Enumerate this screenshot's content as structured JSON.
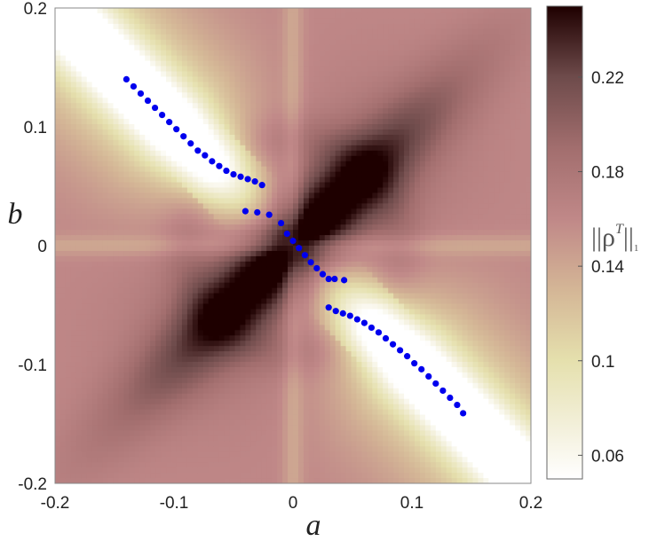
{
  "chart_data": {
    "type": "heatmap",
    "title": "",
    "xlabel": "a",
    "ylabel": "b",
    "xlim": [
      -0.2,
      0.2
    ],
    "ylim": [
      -0.2,
      0.2
    ],
    "x_ticks": [
      "-0.2",
      "-0.1",
      "0",
      "0.1",
      "0.2"
    ],
    "y_ticks": [
      "0.2",
      "0.1",
      "0",
      "-0.1",
      "-0.2"
    ],
    "colorbar": {
      "label_main": "||ρ",
      "label_sup": "T",
      "label_close": "||",
      "label_sub": "1",
      "range": [
        0.05,
        0.25
      ],
      "ticks": [
        "0.22",
        "0.18",
        "0.14",
        "0.1",
        "0.06"
      ],
      "colormap": "pink-reversed"
    },
    "colors": {
      "markers": "#0000ee"
    },
    "markers": {
      "upper_branch": {
        "x": [
          -0.14,
          -0.134,
          -0.128,
          -0.122,
          -0.116,
          -0.11,
          -0.104,
          -0.098,
          -0.092,
          -0.086,
          -0.08,
          -0.074,
          -0.068,
          -0.062,
          -0.056,
          -0.05,
          -0.044,
          -0.038,
          -0.032,
          -0.026
        ],
        "y": [
          0.14,
          0.134,
          0.128,
          0.122,
          0.116,
          0.11,
          0.104,
          0.098,
          0.092,
          0.086,
          0.08,
          0.076,
          0.071,
          0.067,
          0.063,
          0.06,
          0.058,
          0.056,
          0.054,
          0.051
        ]
      },
      "middle_branch": {
        "x": [
          -0.04,
          -0.03,
          -0.02,
          -0.01,
          -0.005,
          0.0,
          0.005,
          0.01,
          0.015,
          0.02,
          0.025,
          0.03,
          0.035,
          0.043
        ],
        "y": [
          0.029,
          0.028,
          0.026,
          0.019,
          0.01,
          0.004,
          -0.002,
          -0.008,
          -0.014,
          -0.019,
          -0.024,
          -0.028,
          -0.028,
          -0.029
        ]
      },
      "lower_branch": {
        "x": [
          0.03,
          0.036,
          0.042,
          0.048,
          0.054,
          0.06,
          0.066,
          0.072,
          0.078,
          0.084,
          0.09,
          0.096,
          0.102,
          0.108,
          0.114,
          0.12,
          0.126,
          0.132,
          0.138,
          0.143
        ],
        "y": [
          -0.052,
          -0.055,
          -0.057,
          -0.059,
          -0.062,
          -0.065,
          -0.069,
          -0.073,
          -0.078,
          -0.083,
          -0.088,
          -0.093,
          -0.099,
          -0.104,
          -0.11,
          -0.116,
          -0.122,
          -0.128,
          -0.134,
          -0.141
        ]
      }
    }
  }
}
